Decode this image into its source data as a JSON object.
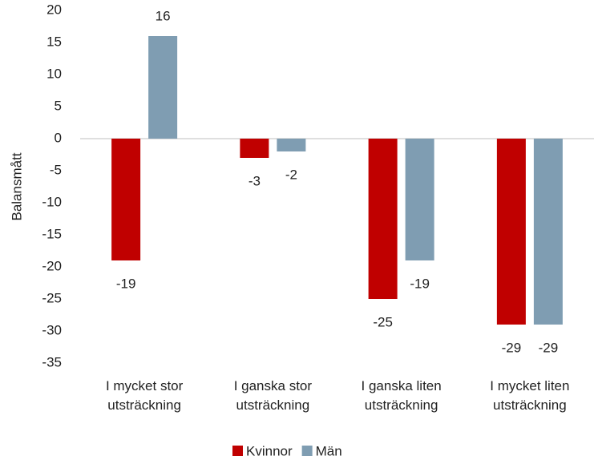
{
  "chart_data": {
    "type": "bar",
    "categories": [
      "I mycket stor utsträckning",
      "I ganska stor utsträckning",
      "I ganska liten utsträckning",
      "I mycket liten utsträckning"
    ],
    "series": [
      {
        "name": "Kvinnor",
        "color": "#c00000",
        "values": [
          -19,
          -3,
          -25,
          -29
        ]
      },
      {
        "name": "Män",
        "color": "#7f9db2",
        "values": [
          16,
          -2,
          -19,
          -29
        ]
      }
    ],
    "ylabel": "Balansmått",
    "ylim": [
      -35,
      20
    ],
    "yticks": [
      -35,
      -30,
      -25,
      -20,
      -15,
      -10,
      -5,
      0,
      5,
      10,
      15,
      20
    ],
    "grid": false,
    "legend": "bottom"
  }
}
